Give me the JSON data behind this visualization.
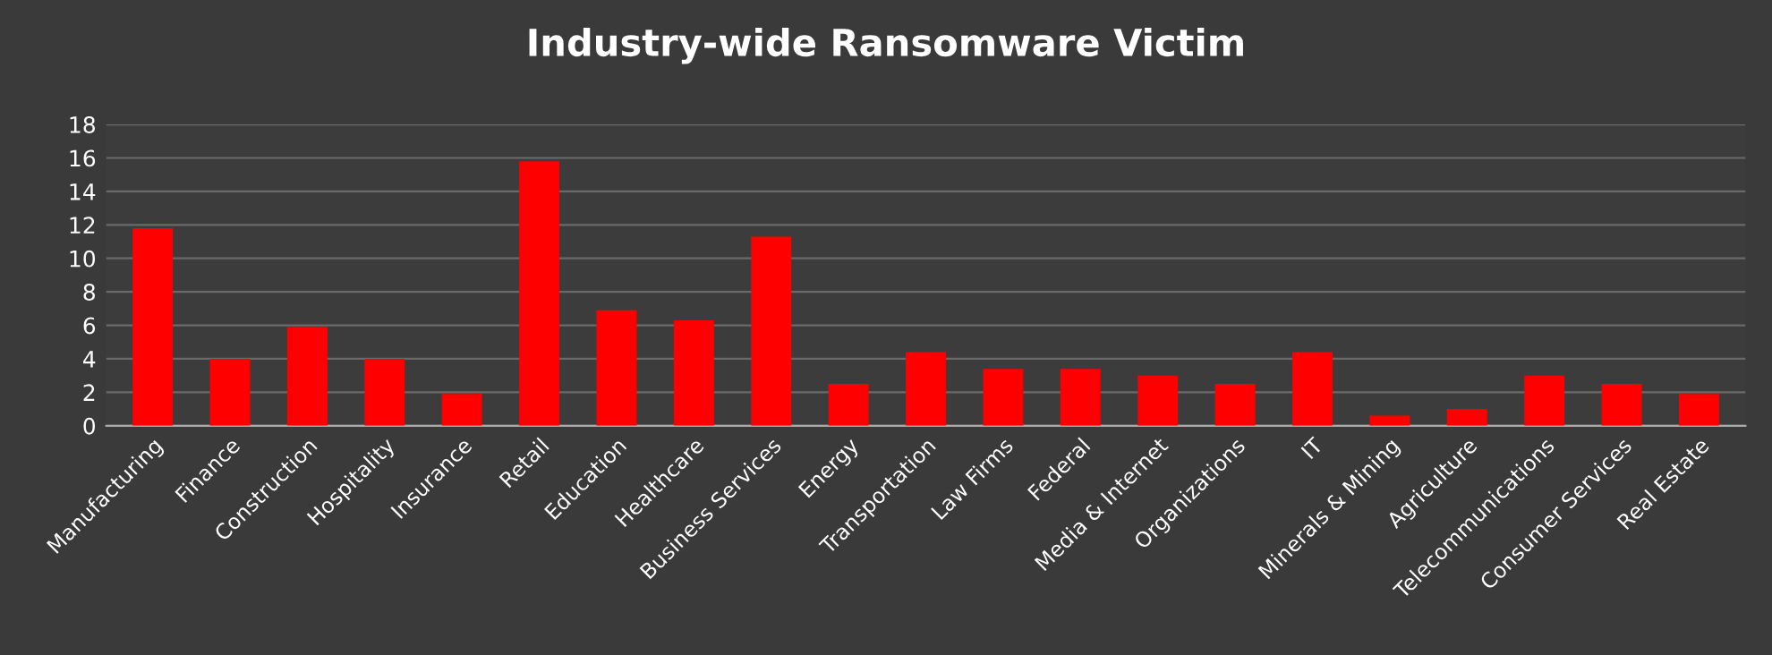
{
  "chart_data": {
    "type": "bar",
    "title": "Industry-wide Ransomware Victim",
    "categories": [
      "Manufacturing",
      "Finance",
      "Construction",
      "Hospitality",
      "Insurance",
      "Retail",
      "Education",
      "Healthcare",
      "Business Services",
      "Energy",
      "Transportation",
      "Law Firms",
      "Federal",
      "Media & Internet",
      "Organizations",
      "IT",
      "Minerals & Mining",
      "Agriculture",
      "Telecommunications",
      "Consumer Services",
      "Real Estate"
    ],
    "values": [
      11.8,
      4,
      5.9,
      4,
      1.9,
      15.8,
      6.9,
      6.3,
      11.3,
      2.5,
      4.4,
      3.4,
      3.4,
      3.0,
      2.5,
      4.4,
      0.6,
      1.0,
      3.0,
      2.5,
      1.9
    ],
    "color": "#ff0000",
    "ylim": [
      0,
      18
    ],
    "yticks": [
      0,
      2,
      4,
      6,
      8,
      10,
      12,
      14,
      16,
      18
    ],
    "grid": "y",
    "legend": false
  }
}
